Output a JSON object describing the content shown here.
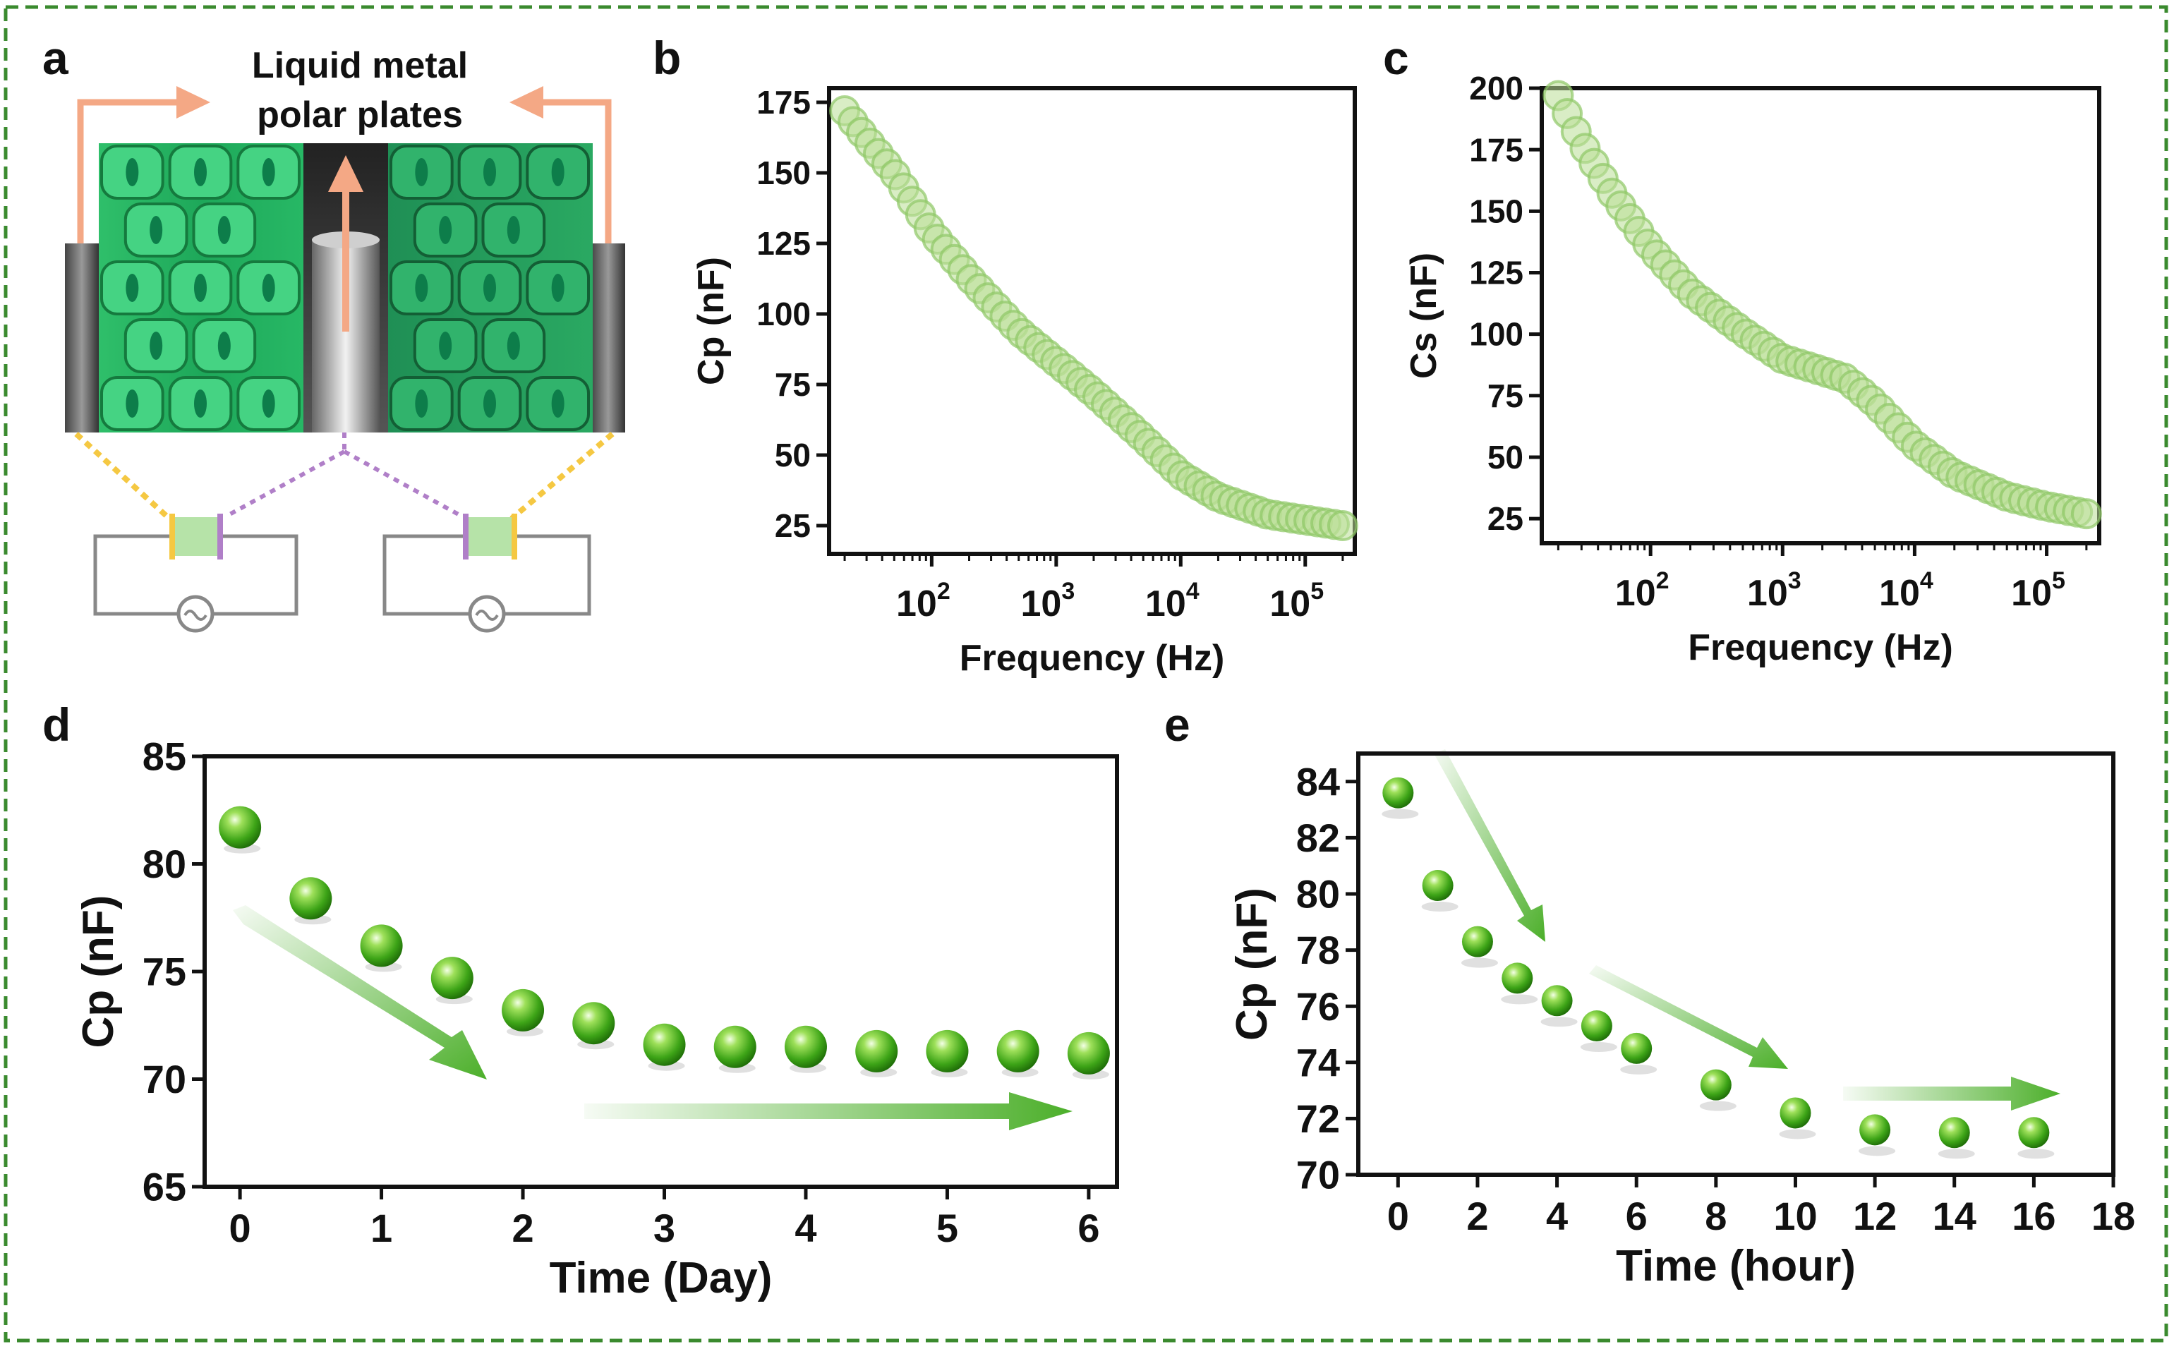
{
  "panels": {
    "a": {
      "label": "a",
      "title_line1": "Liquid metal",
      "title_line2": "polar plates"
    },
    "b": {
      "label": "b"
    },
    "c": {
      "label": "c"
    },
    "d": {
      "label": "d"
    },
    "e": {
      "label": "e"
    }
  },
  "colors": {
    "frame": "#3a8a2e",
    "marker_light": "#a8d77c",
    "marker_dark": "#3da417",
    "arrow_green": "#4caf2a",
    "arrow_orange": "#f4a885",
    "axis": "#111111"
  },
  "chart_data": [
    {
      "id": "b",
      "type": "scatter",
      "xscale": "log",
      "xlabel": "Frequency (Hz)",
      "ylabel": "Cp (nF)",
      "ylim": [
        15,
        180
      ],
      "xlim": [
        15,
        250000
      ],
      "yticks": [
        25,
        50,
        75,
        100,
        125,
        150,
        175
      ],
      "xticks": [
        100,
        1000,
        10000,
        100000
      ],
      "xtick_labels": [
        {
          "base": "10",
          "exp": "2"
        },
        {
          "base": "10",
          "exp": "3"
        },
        {
          "base": "10",
          "exp": "4"
        },
        {
          "base": "10",
          "exp": "5"
        }
      ],
      "anchors": [
        [
          20,
          172
        ],
        [
          30,
          162
        ],
        [
          50,
          150
        ],
        [
          100,
          129
        ],
        [
          200,
          113
        ],
        [
          500,
          94
        ],
        [
          1000,
          83
        ],
        [
          2000,
          72
        ],
        [
          5000,
          56
        ],
        [
          10000,
          43
        ],
        [
          20000,
          35
        ],
        [
          50000,
          29
        ],
        [
          100000,
          27
        ],
        [
          200000,
          25
        ]
      ],
      "points": 60
    },
    {
      "id": "c",
      "type": "scatter",
      "xscale": "log",
      "xlabel": "Frequency (Hz)",
      "ylabel": "Cs (nF)",
      "ylim": [
        15,
        200
      ],
      "xlim": [
        15,
        250000
      ],
      "yticks": [
        25,
        50,
        75,
        100,
        125,
        150,
        175,
        200
      ],
      "xticks": [
        100,
        1000,
        10000,
        100000
      ],
      "xtick_labels": [
        {
          "base": "10",
          "exp": "2"
        },
        {
          "base": "10",
          "exp": "3"
        },
        {
          "base": "10",
          "exp": "4"
        },
        {
          "base": "10",
          "exp": "5"
        }
      ],
      "anchors": [
        [
          20,
          197
        ],
        [
          30,
          178
        ],
        [
          50,
          158
        ],
        [
          100,
          135
        ],
        [
          200,
          117
        ],
        [
          500,
          101
        ],
        [
          1000,
          90
        ],
        [
          2000,
          85
        ],
        [
          3000,
          82
        ],
        [
          5000,
          72
        ],
        [
          10000,
          55
        ],
        [
          20000,
          43
        ],
        [
          50000,
          34
        ],
        [
          100000,
          30
        ],
        [
          200000,
          27
        ]
      ],
      "points": 60
    },
    {
      "id": "d",
      "type": "scatter",
      "xlabel": "Time (Day)",
      "ylabel": "Cp (nF)",
      "xlim": [
        -0.25,
        6.2
      ],
      "ylim": [
        65,
        85
      ],
      "xticks": [
        0,
        1,
        2,
        3,
        4,
        5,
        6
      ],
      "yticks": [
        65,
        70,
        75,
        80,
        85
      ],
      "x": [
        0,
        0.5,
        1,
        1.5,
        2,
        2.5,
        3,
        3.5,
        4,
        4.5,
        5,
        5.5,
        6
      ],
      "y": [
        81.7,
        78.4,
        76.2,
        74.7,
        73.2,
        72.6,
        71.6,
        71.5,
        71.5,
        71.3,
        71.3,
        71.3,
        71.2
      ]
    },
    {
      "id": "e",
      "type": "scatter",
      "xlabel": "Time (hour)",
      "ylabel": "Cp (nF)",
      "xlim": [
        -1,
        18
      ],
      "ylim": [
        70,
        85
      ],
      "xticks": [
        0,
        2,
        4,
        6,
        8,
        10,
        12,
        14,
        16,
        18
      ],
      "yticks": [
        70,
        72,
        74,
        76,
        78,
        80,
        82,
        84
      ],
      "x": [
        0,
        1,
        2,
        3,
        4,
        5,
        6,
        8,
        10,
        12,
        14,
        16
      ],
      "y": [
        83.6,
        80.3,
        78.3,
        77.0,
        76.2,
        75.3,
        74.5,
        73.2,
        72.2,
        71.6,
        71.5,
        71.5
      ]
    }
  ]
}
